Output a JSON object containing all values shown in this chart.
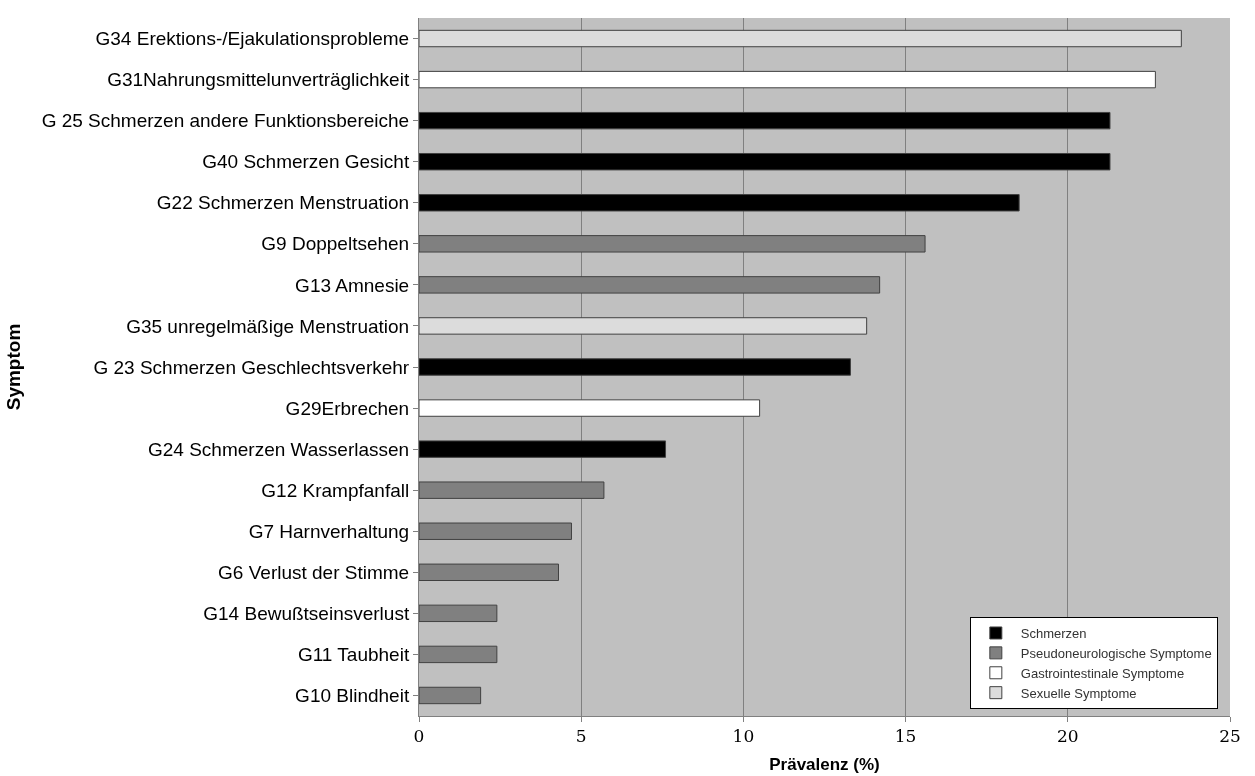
{
  "chart_data": {
    "type": "bar",
    "orientation": "horizontal",
    "xlabel": "Prävalenz (%)",
    "ylabel": "Symptom",
    "categories": [
      "G34 Erektions-/Ejakulationsprobleme",
      "G31Nahrungsmittelunverträglichkeit",
      "G 25 Schmerzen andere Funktionsbereiche",
      "G40 Schmerzen Gesicht",
      "G22 Schmerzen Menstruation",
      "G9 Doppeltsehen",
      "G13 Amnesie",
      "G35 unregelmäßige Menstruation",
      "G 23 Schmerzen Geschlechtsverkehr",
      "G29Erbrechen",
      "G24 Schmerzen Wasserlassen",
      "G12 Krampfanfall",
      "G7 Harnverhaltung",
      "G6 Verlust der Stimme",
      "G14 Bewußtseinsverlust",
      "G11 Taubheit",
      "G10 Blindheit"
    ],
    "series": [
      {
        "name": "Schmerzen",
        "color": "#000000",
        "values": [
          null,
          null,
          21.3,
          21.3,
          18.5,
          null,
          null,
          null,
          13.3,
          null,
          7.6,
          null,
          null,
          null,
          null,
          null,
          null
        ]
      },
      {
        "name": "Pseudoneurologische Symptome",
        "color": "#808080",
        "values": [
          null,
          null,
          null,
          null,
          null,
          15.6,
          14.2,
          null,
          null,
          null,
          null,
          5.7,
          4.7,
          4.3,
          2.4,
          2.4,
          1.9
        ]
      },
      {
        "name": "Gastrointestinale Symptome",
        "color": "#ffffff",
        "values": [
          null,
          22.7,
          null,
          null,
          null,
          null,
          null,
          null,
          null,
          10.5,
          null,
          null,
          null,
          null,
          null,
          null,
          null
        ]
      },
      {
        "name": "Sexuelle Symptome",
        "color": "#dcdcdc",
        "values": [
          23.5,
          null,
          null,
          null,
          null,
          null,
          null,
          13.8,
          null,
          null,
          null,
          null,
          null,
          null,
          null,
          null,
          null
        ]
      }
    ],
    "xlim": [
      0,
      25
    ],
    "xticks": [
      0,
      5,
      10,
      15,
      20,
      25
    ],
    "grid": "x",
    "legend": "bottom right"
  }
}
